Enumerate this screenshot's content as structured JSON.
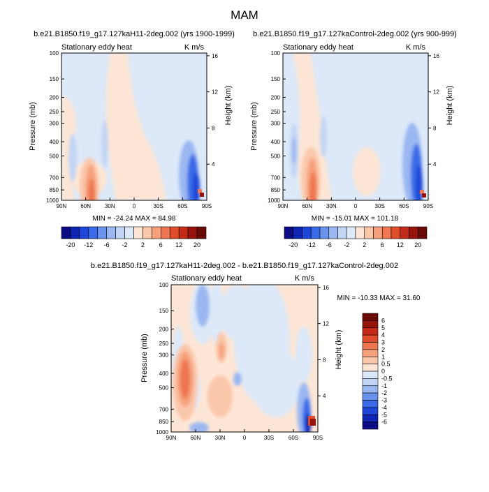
{
  "page_title": "MAM",
  "chart_data": [
    {
      "type": "heatmap",
      "title": "b.e21.B1850.f19_g17.127kaH11-2deg.002 (yrs 1900-1999)",
      "left_label": "Stationary eddy heat",
      "right_label": "K m/s",
      "ylabel": "Pressure (mb)",
      "ylabel_right": "Height (km)",
      "x_ticks": [
        "90N",
        "60N",
        "30N",
        "0",
        "30S",
        "60S",
        "90S"
      ],
      "y_ticks": [
        "100",
        "150",
        "200",
        "250",
        "300",
        "400",
        "500",
        "700",
        "850",
        "1000"
      ],
      "y_right_ticks": [
        "16",
        "12",
        "8",
        "4"
      ],
      "stats": "MIN = -24.24  MAX = 84.98",
      "colorbar_labels": [
        "-20",
        "-12",
        "-6",
        "-2",
        "2",
        "6",
        "12",
        "20"
      ],
      "colorbar_orientation": "horizontal",
      "colors": [
        "#0b0b84",
        "#0f25b4",
        "#1e46d8",
        "#3a6ae8",
        "#6a93ee",
        "#9ab7f1",
        "#c2d5f4",
        "#dde9f8",
        "#fde6d6",
        "#fbc7aa",
        "#f6a07c",
        "#ee7650",
        "#e04d2c",
        "#c42a18",
        "#97140c",
        "#6a0a06"
      ]
    },
    {
      "type": "heatmap",
      "title": "b.e21.B1850.f19_g17.127kaControl-2deg.002 (yrs 900-999)",
      "left_label": "Stationary eddy heat",
      "right_label": "K m/s",
      "ylabel": "Pressure (mb)",
      "ylabel_right": "Height (km)",
      "x_ticks": [
        "90N",
        "60N",
        "30N",
        "0",
        "30S",
        "60S",
        "90S"
      ],
      "y_ticks": [
        "100",
        "150",
        "200",
        "250",
        "300",
        "400",
        "500",
        "700",
        "850",
        "1000"
      ],
      "y_right_ticks": [
        "16",
        "12",
        "8",
        "4"
      ],
      "stats": "MIN = -15.01  MAX = 101.18",
      "colorbar_labels": [
        "-20",
        "-12",
        "-6",
        "-2",
        "2",
        "6",
        "12",
        "20"
      ],
      "colorbar_orientation": "horizontal"
    },
    {
      "type": "heatmap",
      "title": "b.e21.B1850.f19_g17.127kaH11-2deg.002 - b.e21.B1850.f19_g17.127kaControl-2deg.002",
      "left_label": "Stationary eddy heat",
      "right_label": "K m/s",
      "ylabel": "Pressure (mb)",
      "ylabel_right": "Height (km)",
      "x_ticks": [
        "90N",
        "60N",
        "30N",
        "0",
        "30S",
        "60S",
        "90S"
      ],
      "y_ticks": [
        "100",
        "150",
        "200",
        "250",
        "300",
        "400",
        "500",
        "700",
        "850",
        "1000"
      ],
      "y_right_ticks": [
        "16",
        "12",
        "8",
        "4"
      ],
      "stats": "MIN = -10.33  MAX =  31.60",
      "colorbar_labels": [
        "6",
        "5",
        "4",
        "3",
        "2",
        "1",
        "0.5",
        "0",
        "-0.5",
        "-1",
        "-2",
        "-3",
        "-4",
        "-5",
        "-6"
      ],
      "colorbar_orientation": "vertical",
      "colors": [
        "#6a0a06",
        "#97140c",
        "#c42a18",
        "#e04d2c",
        "#ee7650",
        "#f6a07c",
        "#fbc7aa",
        "#fde6d6",
        "#dde9f8",
        "#c2d5f4",
        "#9ab7f1",
        "#6a93ee",
        "#3a6ae8",
        "#1e46d8",
        "#0f25b4",
        "#0b0b84"
      ]
    }
  ]
}
